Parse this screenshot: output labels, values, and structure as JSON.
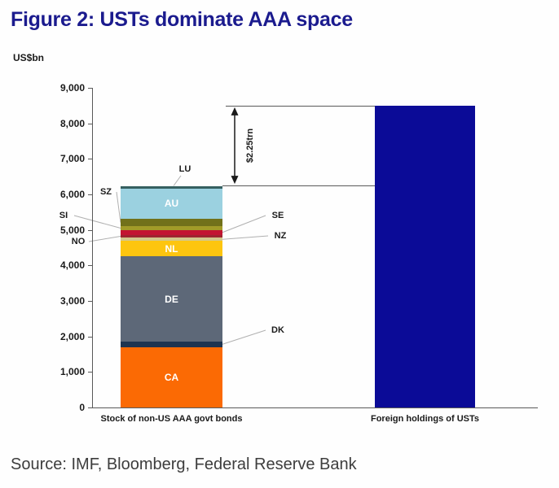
{
  "title": "Figure 2: USTs dominate AAA space",
  "source": "Source: IMF, Bloomberg, Federal Reserve Bank",
  "colors": {
    "title_navy": "#1b1b8e",
    "ust_bar_navy": "#0b0b97",
    "axis": "#595959",
    "leader_line": "#b0b0b0"
  },
  "chart_data": {
    "type": "bar",
    "variant": "stacked-vs-single-comparison",
    "title": "Figure 2: USTs dominate AAA space",
    "unit_label": "US$bn",
    "ylim": [
      0,
      9000
    ],
    "yticks": [
      0,
      1000,
      2000,
      3000,
      4000,
      5000,
      6000,
      7000,
      8000,
      9000
    ],
    "grid": false,
    "legend": "none",
    "categories": [
      "Stock of non-US AAA govt bonds",
      "Foreign holdings of USTs"
    ],
    "stacked_bar": {
      "category_index": 0,
      "total_approx": 6250,
      "segments_bottom_to_top": [
        {
          "code": "CA",
          "value": 1700,
          "color": "#fb6a04",
          "label_style": "inside"
        },
        {
          "code": "DK",
          "value": 160,
          "color": "#1e3450",
          "label_style": "right"
        },
        {
          "code": "DE",
          "value": 2390,
          "color": "#5d6878",
          "label_style": "inside"
        },
        {
          "code": "NL",
          "value": 440,
          "color": "#fdc50f",
          "label_style": "inside"
        },
        {
          "code": "NZ",
          "value": 90,
          "color": "#d3c78c",
          "label_style": "right"
        },
        {
          "code": "NO",
          "value": 80,
          "color": "#9e2430",
          "label_style": "left"
        },
        {
          "code": "SE",
          "value": 140,
          "color": "#c31432",
          "label_style": "right"
        },
        {
          "code": "SI",
          "value": 100,
          "color": "#a29b28",
          "label_style": "left"
        },
        {
          "code": "SZ",
          "value": 220,
          "color": "#71711a",
          "label_style": "left"
        },
        {
          "code": "AU",
          "value": 850,
          "color": "#9bd1e0",
          "label_style": "inside"
        },
        {
          "code": "LU",
          "value": 70,
          "color": "#356060",
          "label_style": "top"
        }
      ]
    },
    "solid_bar": {
      "category_index": 1,
      "value": 8500,
      "color": "#0b0b97"
    },
    "annotation": {
      "label": "$2.25trn",
      "from_value": 6250,
      "to_value": 8500
    }
  }
}
